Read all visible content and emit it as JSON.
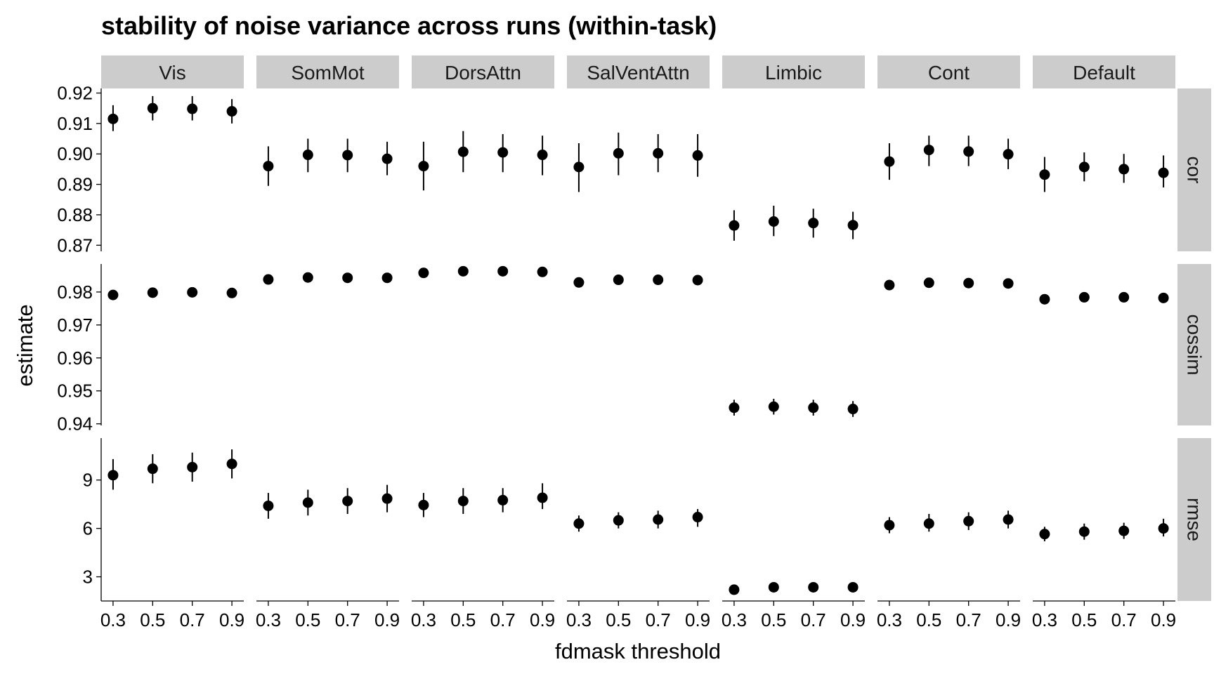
{
  "chart_data": {
    "type": "scatter",
    "title": "stability of noise variance across runs (within-task)",
    "xlabel": "fdmask threshold",
    "ylabel": "estimate",
    "x": [
      0.3,
      0.5,
      0.7,
      0.9
    ],
    "x_tick_labels": [
      "0.3",
      "0.5",
      "0.7",
      "0.9"
    ],
    "networks": [
      "Vis",
      "SomMot",
      "DorsAttn",
      "SalVentAttn",
      "Limbic",
      "Cont",
      "Default"
    ],
    "metrics": [
      {
        "name": "cor",
        "ylim": [
          0.868,
          0.9215
        ],
        "ticks": [
          0.87,
          0.88,
          0.89,
          0.9,
          0.91,
          0.92
        ],
        "tick_labels": [
          "0.87",
          "0.88",
          "0.89",
          "0.90",
          "0.91",
          "0.92"
        ],
        "series": [
          {
            "network": "Vis",
            "values": [
              0.9115,
              0.915,
              0.9148,
              0.914
            ],
            "lower": [
              0.9075,
              0.911,
              0.911,
              0.91
            ],
            "upper": [
              0.916,
              0.919,
              0.919,
              0.918
            ]
          },
          {
            "network": "SomMot",
            "values": [
              0.896,
              0.8997,
              0.8996,
              0.8984
            ],
            "lower": [
              0.8895,
              0.894,
              0.894,
              0.893
            ],
            "upper": [
              0.9025,
              0.905,
              0.905,
              0.904
            ]
          },
          {
            "network": "DorsAttn",
            "values": [
              0.896,
              0.9007,
              0.9005,
              0.8997
            ],
            "lower": [
              0.888,
              0.894,
              0.894,
              0.893
            ],
            "upper": [
              0.904,
              0.9075,
              0.9065,
              0.906
            ]
          },
          {
            "network": "SalVentAttn",
            "values": [
              0.8957,
              0.9002,
              0.9002,
              0.8995
            ],
            "lower": [
              0.8875,
              0.893,
              0.894,
              0.8925
            ],
            "upper": [
              0.9035,
              0.907,
              0.9065,
              0.9065
            ]
          },
          {
            "network": "Limbic",
            "values": [
              0.8765,
              0.8778,
              0.8773,
              0.8766
            ],
            "lower": [
              0.8715,
              0.873,
              0.8725,
              0.872
            ],
            "upper": [
              0.8815,
              0.883,
              0.882,
              0.881
            ]
          },
          {
            "network": "Cont",
            "values": [
              0.8975,
              0.9013,
              0.9008,
              0.8999
            ],
            "lower": [
              0.8915,
              0.896,
              0.896,
              0.895
            ],
            "upper": [
              0.9035,
              0.906,
              0.906,
              0.905
            ]
          },
          {
            "network": "Default",
            "values": [
              0.8932,
              0.8957,
              0.895,
              0.8938
            ],
            "lower": [
              0.8875,
              0.891,
              0.8905,
              0.889
            ],
            "upper": [
              0.899,
              0.9005,
              0.9,
              0.8995
            ]
          }
        ]
      },
      {
        "name": "cossim",
        "ylim": [
          0.9395,
          0.9885
        ],
        "ticks": [
          0.94,
          0.95,
          0.96,
          0.97,
          0.98
        ],
        "tick_labels": [
          "0.94",
          "0.95",
          "0.96",
          "0.97",
          "0.98"
        ],
        "series": [
          {
            "network": "Vis",
            "values": [
              0.9791,
              0.9798,
              0.9799,
              0.9797
            ],
            "lower": [
              0.9784,
              0.9791,
              0.9792,
              0.979
            ],
            "upper": [
              0.9798,
              0.9805,
              0.9806,
              0.9804
            ]
          },
          {
            "network": "SomMot",
            "values": [
              0.9838,
              0.9844,
              0.9843,
              0.9843
            ],
            "lower": [
              0.9832,
              0.9838,
              0.9837,
              0.9837
            ],
            "upper": [
              0.9844,
              0.985,
              0.9849,
              0.9849
            ]
          },
          {
            "network": "DorsAttn",
            "values": [
              0.9858,
              0.9863,
              0.9863,
              0.9861
            ],
            "lower": [
              0.9852,
              0.9857,
              0.9857,
              0.9855
            ],
            "upper": [
              0.9864,
              0.9869,
              0.9869,
              0.9867
            ]
          },
          {
            "network": "SalVentAttn",
            "values": [
              0.9829,
              0.9837,
              0.9837,
              0.9836
            ],
            "lower": [
              0.9822,
              0.983,
              0.983,
              0.9829
            ],
            "upper": [
              0.9836,
              0.9844,
              0.9844,
              0.9843
            ]
          },
          {
            "network": "Limbic",
            "values": [
              0.9449,
              0.9452,
              0.9449,
              0.9445
            ],
            "lower": [
              0.9425,
              0.9428,
              0.9425,
              0.9421
            ],
            "upper": [
              0.9473,
              0.9476,
              0.9473,
              0.9469
            ]
          },
          {
            "network": "Cont",
            "values": [
              0.9821,
              0.9828,
              0.9827,
              0.9826
            ],
            "lower": [
              0.9815,
              0.9822,
              0.9821,
              0.982
            ],
            "upper": [
              0.9827,
              0.9834,
              0.9833,
              0.9832
            ]
          },
          {
            "network": "Default",
            "values": [
              0.9778,
              0.9784,
              0.9784,
              0.9782
            ],
            "lower": [
              0.9771,
              0.9777,
              0.9777,
              0.9775
            ],
            "upper": [
              0.9785,
              0.9791,
              0.9791,
              0.9789
            ]
          }
        ]
      },
      {
        "name": "rmse",
        "ylim": [
          1.5,
          11.6
        ],
        "ticks": [
          3,
          6,
          9
        ],
        "tick_labels": [
          "3",
          "6",
          "9"
        ],
        "series": [
          {
            "network": "Vis",
            "values": [
              9.3,
              9.7,
              9.8,
              10.0
            ],
            "lower": [
              8.4,
              8.8,
              8.9,
              9.1
            ],
            "upper": [
              10.3,
              10.6,
              10.7,
              10.9
            ]
          },
          {
            "network": "SomMot",
            "values": [
              7.4,
              7.6,
              7.7,
              7.85
            ],
            "lower": [
              6.6,
              6.8,
              6.9,
              7.0
            ],
            "upper": [
              8.2,
              8.4,
              8.5,
              8.7
            ]
          },
          {
            "network": "DorsAttn",
            "values": [
              7.45,
              7.7,
              7.75,
              7.9
            ],
            "lower": [
              6.7,
              6.9,
              7.0,
              7.2
            ],
            "upper": [
              8.2,
              8.5,
              8.5,
              8.8
            ]
          },
          {
            "network": "SalVentAttn",
            "values": [
              6.3,
              6.5,
              6.55,
              6.7
            ],
            "lower": [
              5.8,
              6.0,
              6.0,
              6.1
            ],
            "upper": [
              6.8,
              7.0,
              7.1,
              7.2
            ]
          },
          {
            "network": "Limbic",
            "values": [
              2.2,
              2.35,
              2.35,
              2.35
            ],
            "lower": [
              2.0,
              2.15,
              2.15,
              2.15
            ],
            "upper": [
              2.4,
              2.55,
              2.55,
              2.55
            ]
          },
          {
            "network": "Cont",
            "values": [
              6.2,
              6.3,
              6.45,
              6.55
            ],
            "lower": [
              5.7,
              5.8,
              5.9,
              6.0
            ],
            "upper": [
              6.7,
              6.9,
              7.0,
              7.1
            ]
          },
          {
            "network": "Default",
            "values": [
              5.65,
              5.8,
              5.85,
              6.0
            ],
            "lower": [
              5.2,
              5.3,
              5.35,
              5.5
            ],
            "upper": [
              6.1,
              6.3,
              6.35,
              6.6
            ]
          }
        ]
      }
    ],
    "facet_strip_color": "#cccccc",
    "point_color": "#000000",
    "grid": false,
    "legend": "none"
  }
}
